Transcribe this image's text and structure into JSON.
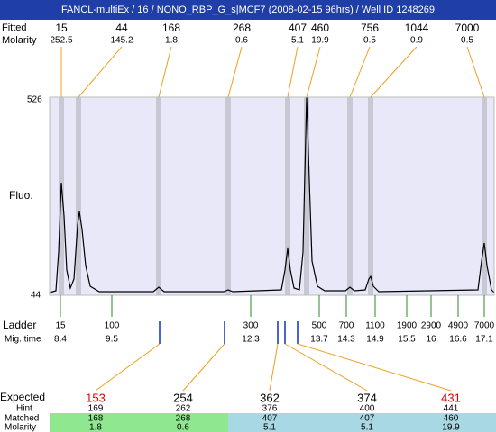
{
  "header": {
    "title": "FANCL-multiEx / 16 / NONO_RBP_G_s|MCF7 (2008-02-15 96hrs) / Well ID 1248269"
  },
  "peaks": {
    "size_label": "Fitted",
    "molarity_label": "Molarity",
    "items": [
      {
        "size": 15,
        "molarity": 252.5
      },
      {
        "size": 44,
        "molarity": 145.2
      },
      {
        "size": 168,
        "molarity": 1.8
      },
      {
        "size": 268,
        "molarity": 0.6
      },
      {
        "size": 407,
        "molarity": 5.1
      },
      {
        "size": 460,
        "molarity": 19.9
      },
      {
        "size": 756,
        "molarity": 0.5
      },
      {
        "size": 1044,
        "molarity": 0.9
      },
      {
        "size": 7000,
        "molarity": 0.5
      }
    ]
  },
  "axis": {
    "top": 526,
    "bottom": 44,
    "label": "Fluo."
  },
  "ladder": {
    "label": "Ladder",
    "time_label": "Mig. time",
    "items": [
      {
        "size": 15,
        "time": 8.4
      },
      {
        "size": 100,
        "time": 9.5
      },
      {
        "size": 300,
        "time": 12.3
      },
      {
        "size": 500,
        "time": 13.7
      },
      {
        "size": 700,
        "time": 14.3
      },
      {
        "size": 1100,
        "time": 14.9
      },
      {
        "size": 1900,
        "time": 15.5
      },
      {
        "size": 2900,
        "time": 16
      },
      {
        "size": 4900,
        "time": 16.6
      },
      {
        "size": 7000,
        "time": 17.1
      }
    ]
  },
  "expected": {
    "label": "Expected",
    "hint_label": "Hint",
    "matched_label": "Matched",
    "molarity_label": "Molarity",
    "items": [
      {
        "expected": 153,
        "color": "#e00000",
        "hint": 169,
        "matched": 168,
        "molarity": 1.8
      },
      {
        "expected": 254,
        "color": "#000000",
        "hint": 262,
        "matched": 268,
        "molarity": 0.6
      },
      {
        "expected": 362,
        "color": "#000000",
        "hint": 376,
        "matched": 407,
        "molarity": 5.1
      },
      {
        "expected": 374,
        "color": "#000000",
        "hint": 400,
        "matched": 407,
        "molarity": 5.1
      },
      {
        "expected": 431,
        "color": "#e00000",
        "hint": 441,
        "matched": 460,
        "molarity": 19.9
      }
    ]
  }
}
